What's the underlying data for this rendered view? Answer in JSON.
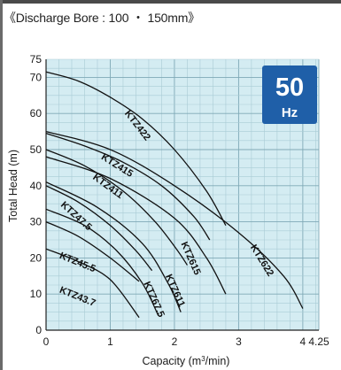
{
  "heading": "《Discharge Bore : 100 ・ 150mm》",
  "badge": {
    "frequency": "50",
    "unit": "Hz",
    "color": "#1f5fa8"
  },
  "chart_data": {
    "type": "line",
    "title": "",
    "xlabel": "Capacity (m³/min)",
    "ylabel": "Total Head (m)",
    "xlim": [
      0,
      4.25
    ],
    "ylim": [
      0,
      75
    ],
    "xticks": [
      "0",
      "1",
      "2",
      "3",
      "4",
      "4.25"
    ],
    "xtick_values": [
      0,
      1,
      2,
      3,
      4,
      4.25
    ],
    "yticks": [
      "0",
      "10",
      "20",
      "30",
      "40",
      "50",
      "60",
      "70",
      "75"
    ],
    "ytick_values": [
      0,
      10,
      20,
      30,
      40,
      50,
      60,
      70,
      75
    ],
    "grid": true,
    "plot_background": "#d4ecf2",
    "series": [
      {
        "name": "KTZ422",
        "points": [
          [
            0,
            71.5
          ],
          [
            0.5,
            69
          ],
          [
            1,
            64.5
          ],
          [
            1.5,
            58.5
          ],
          [
            2,
            50
          ],
          [
            2.5,
            38.5
          ],
          [
            2.8,
            29
          ]
        ],
        "label_at": [
          1.22,
          60
        ],
        "label_angle": 52
      },
      {
        "name": "KTZ622",
        "points": [
          [
            0,
            55
          ],
          [
            1,
            50
          ],
          [
            2,
            40
          ],
          [
            3,
            27
          ],
          [
            3.7,
            15
          ],
          [
            4,
            6
          ]
        ],
        "label_at": [
          3.18,
          23
        ],
        "label_angle": 58
      },
      {
        "name": "KTZ415",
        "points": [
          [
            0,
            54.5
          ],
          [
            0.6,
            51
          ],
          [
            1.2,
            46.5
          ],
          [
            1.8,
            40
          ],
          [
            2.3,
            31.5
          ],
          [
            2.55,
            25
          ]
        ],
        "label_at": [
          0.85,
          47.5
        ],
        "label_angle": 32
      },
      {
        "name": "KTZ615",
        "points": [
          [
            0,
            48
          ],
          [
            1,
            42
          ],
          [
            2,
            31
          ],
          [
            2.5,
            20
          ],
          [
            2.8,
            10
          ]
        ],
        "label_at": [
          2.1,
          24
        ],
        "label_angle": 66
      },
      {
        "name": "KTZ411",
        "points": [
          [
            0,
            50
          ],
          [
            0.6,
            45.5
          ],
          [
            1.2,
            38.5
          ],
          [
            1.7,
            30
          ],
          [
            2.05,
            22
          ],
          [
            2.2,
            18
          ]
        ],
        "label_at": [
          0.72,
          42
        ],
        "label_angle": 36
      },
      {
        "name": "KTZ611",
        "points": [
          [
            0,
            41
          ],
          [
            0.8,
            34
          ],
          [
            1.5,
            24
          ],
          [
            1.9,
            13
          ],
          [
            2.1,
            5
          ]
        ],
        "label_at": [
          1.86,
          15
        ],
        "label_angle": 66
      },
      {
        "name": "KTZ47.5",
        "points": [
          [
            0,
            40
          ],
          [
            0.5,
            35.5
          ],
          [
            1,
            29
          ],
          [
            1.4,
            22
          ],
          [
            1.65,
            16.5
          ]
        ],
        "label_at": [
          0.22,
          34.5
        ],
        "label_angle": 42
      },
      {
        "name": "KTZ67.5",
        "points": [
          [
            0,
            33.5
          ],
          [
            0.6,
            29
          ],
          [
            1.1,
            22
          ],
          [
            1.5,
            13
          ],
          [
            1.75,
            4
          ]
        ],
        "label_at": [
          1.52,
          13
        ],
        "label_angle": 66
      },
      {
        "name": "KTZ45.5",
        "points": [
          [
            0,
            30
          ],
          [
            0.5,
            26
          ],
          [
            1,
            20
          ],
          [
            1.45,
            13.5
          ]
        ],
        "label_at": [
          0.2,
          20
        ],
        "label_angle": 22
      },
      {
        "name": "KTZ43.7",
        "points": [
          [
            0,
            22.5
          ],
          [
            0.5,
            19
          ],
          [
            1,
            14
          ],
          [
            1.45,
            3.5
          ]
        ],
        "label_at": [
          0.2,
          10.5
        ],
        "label_angle": 22
      }
    ]
  }
}
